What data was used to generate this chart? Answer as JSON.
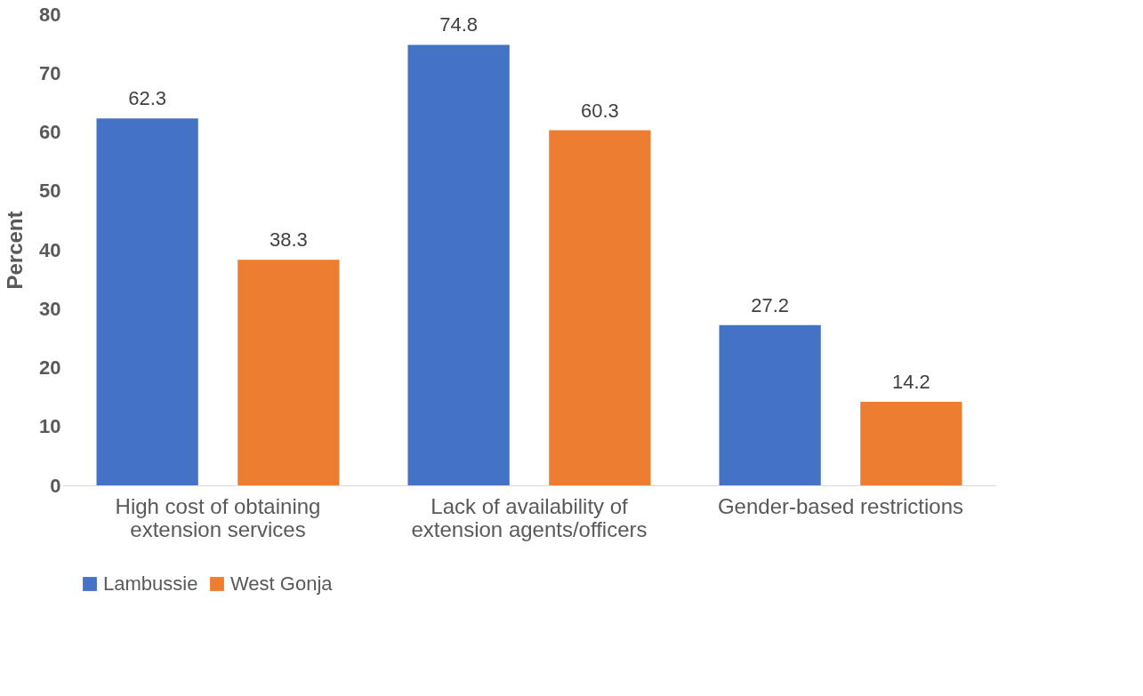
{
  "chart_data": {
    "type": "bar",
    "ylabel": "Percent",
    "categories": [
      "High cost of obtaining extension services",
      "Lack of availability of extension agents/officers",
      "Gender-based restrictions"
    ],
    "series": [
      {
        "name": "Lambussie",
        "color": "#4472c4",
        "values": [
          62.3,
          74.8,
          27.2
        ]
      },
      {
        "name": "West Gonja",
        "color": "#ed7d31",
        "values": [
          38.3,
          60.3,
          14.2
        ]
      }
    ],
    "ylim": [
      0,
      80
    ],
    "yticks": [
      0,
      10,
      20,
      30,
      40,
      50,
      60,
      70,
      80
    ],
    "grid": false,
    "legend": "bottom",
    "data_labels": true
  }
}
